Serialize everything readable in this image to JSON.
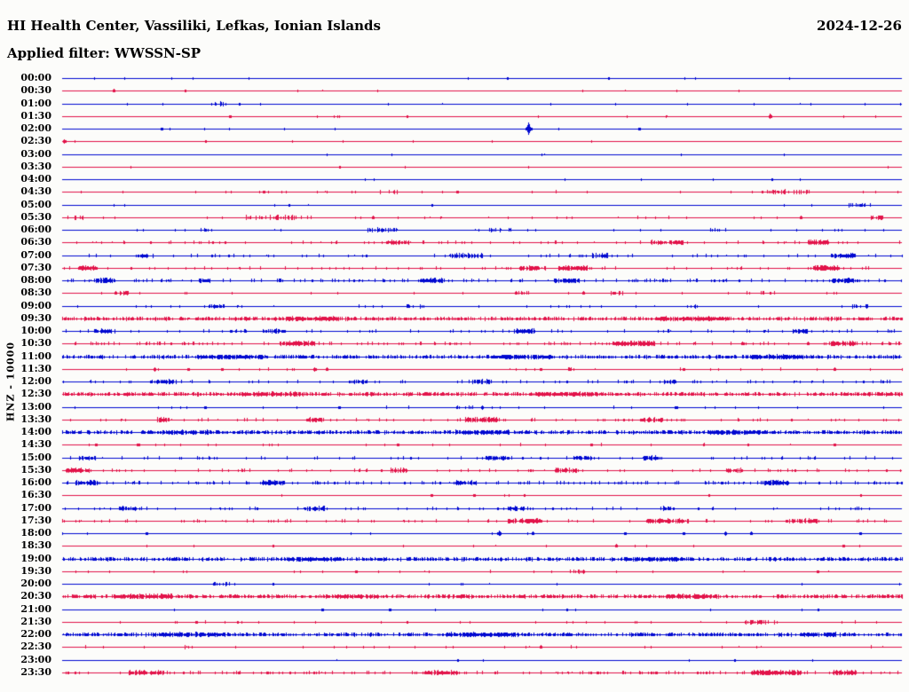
{
  "header": {
    "title": "HI Health Center, Vassiliki, Lefkas, Ionian Islands",
    "date": "2024-12-26",
    "filter_label": "Applied filter: WWSSN-SP"
  },
  "colors": {
    "trace_blue": "#0008d0",
    "trace_red": "#e21349",
    "text": "#000000",
    "background": "#fcfcfa"
  },
  "chart_data": {
    "type": "line",
    "subtype": "helicorder-seismogram",
    "title": "HI Health Center, Vassiliki, Lefkas, Ionian Islands",
    "date": "2024-12-26",
    "filter": "WWSSN-SP",
    "channel_label": "HNZ - 10000",
    "station": "HI",
    "channel": "HNZ",
    "gain": "10000",
    "grid": "off",
    "legend": "none",
    "x_axis": {
      "start": "00:00",
      "end": "24:00",
      "minutes_per_row": 30
    },
    "row_color_rule": "hour rows blue, half-hour rows red, alternating",
    "activity_levels": "l: 0=quiet 1=light 2=moderate 3=noisy 4=dense; b: bursts [x-fraction,width-px,strength]; e: event spikes [x-fraction,amplitude-px]",
    "rows": [
      {
        "t": "00:00",
        "c": "b",
        "l": 0,
        "b": [],
        "e": [
          [
            0.53,
            1.2
          ],
          [
            0.65,
            1.3
          ]
        ]
      },
      {
        "t": "00:30",
        "c": "r",
        "l": 0,
        "b": [],
        "e": [
          [
            0.061,
            1.8
          ],
          [
            0.146,
            1.3
          ]
        ]
      },
      {
        "t": "01:00",
        "c": "b",
        "l": 0,
        "b": [
          [
            0.183,
            16,
            2.5
          ]
        ],
        "e": [
          [
            0.21,
            1.3
          ]
        ]
      },
      {
        "t": "01:30",
        "c": "r",
        "l": 0,
        "b": [
          [
            0.327,
            10,
            1.8
          ]
        ],
        "e": [
          [
            0.2,
            1.4
          ],
          [
            0.41,
            1.3
          ],
          [
            0.843,
            2.6
          ]
        ]
      },
      {
        "t": "02:00",
        "c": "b",
        "l": 0,
        "b": [],
        "e": [
          [
            0.118,
            1.4
          ],
          [
            0.555,
            7
          ],
          [
            0.687,
            1.4
          ]
        ]
      },
      {
        "t": "02:30",
        "c": "r",
        "l": 0,
        "b": [],
        "e": [
          [
            0.002,
            2
          ],
          [
            0.17,
            1.3
          ]
        ]
      },
      {
        "t": "03:00",
        "c": "b",
        "l": 0,
        "b": [],
        "e": []
      },
      {
        "t": "03:30",
        "c": "r",
        "l": 0,
        "b": [],
        "e": [
          [
            0.33,
            1.2
          ]
        ]
      },
      {
        "t": "04:00",
        "c": "b",
        "l": 0,
        "b": [],
        "e": [
          [
            0.845,
            1.2
          ]
        ]
      },
      {
        "t": "04:30",
        "c": "r",
        "l": 1,
        "b": [
          [
            0.39,
            26,
            1.6
          ],
          [
            0.86,
            55,
            1.8
          ]
        ],
        "e": [
          [
            0.24,
            1.4
          ],
          [
            0.47,
            1.4
          ]
        ]
      },
      {
        "t": "05:00",
        "c": "b",
        "l": 0,
        "b": [
          [
            0.95,
            26,
            2
          ]
        ],
        "e": [
          [
            0.27,
            1.3
          ],
          [
            0.44,
            1.3
          ]
        ]
      },
      {
        "t": "05:30",
        "c": "r",
        "l": 1,
        "b": [
          [
            0.02,
            10,
            1.8
          ],
          [
            0.25,
            60,
            2.2
          ],
          [
            0.97,
            14,
            1.8
          ]
        ],
        "e": [
          [
            0.37,
            1.5
          ],
          [
            0.88,
            1.5
          ]
        ]
      },
      {
        "t": "06:00",
        "c": "b",
        "l": 1,
        "b": [
          [
            0.17,
            12,
            1.5
          ],
          [
            0.38,
            40,
            1.8
          ],
          [
            0.52,
            28,
            1.5
          ],
          [
            0.78,
            20,
            1.5
          ]
        ],
        "e": []
      },
      {
        "t": "06:30",
        "c": "r",
        "l": 2,
        "b": [
          [
            0.4,
            28,
            1.5
          ],
          [
            0.72,
            36,
            1.5
          ],
          [
            0.9,
            24,
            1.8
          ]
        ],
        "e": []
      },
      {
        "t": "07:00",
        "c": "b",
        "l": 2,
        "b": [
          [
            0.1,
            20,
            1.5
          ],
          [
            0.48,
            38,
            1.5
          ],
          [
            0.64,
            20,
            1.5
          ],
          [
            0.93,
            28,
            1.5
          ]
        ],
        "e": []
      },
      {
        "t": "07:30",
        "c": "r",
        "l": 2,
        "b": [
          [
            0.03,
            22,
            1.8
          ],
          [
            0.56,
            30,
            1.5
          ],
          [
            0.61,
            38,
            1.8
          ],
          [
            0.91,
            30,
            1.8
          ]
        ],
        "e": []
      },
      {
        "t": "08:00",
        "c": "b",
        "l": 3,
        "b": [
          [
            0.05,
            24,
            1.6
          ],
          [
            0.17,
            14,
            1.5
          ],
          [
            0.44,
            28,
            1.5
          ],
          [
            0.6,
            30,
            1.5
          ],
          [
            0.93,
            24,
            1.5
          ]
        ],
        "e": []
      },
      {
        "t": "08:30",
        "c": "r",
        "l": 1,
        "b": [
          [
            0.07,
            16,
            1.5
          ],
          [
            0.55,
            20,
            1.5
          ],
          [
            0.66,
            14,
            1.5
          ],
          [
            0.84,
            16,
            1.5
          ]
        ],
        "e": [
          [
            0.54,
            1.7
          ],
          [
            0.62,
            1.7
          ]
        ]
      },
      {
        "t": "09:00",
        "c": "b",
        "l": 1,
        "b": [
          [
            0.18,
            24,
            1.5
          ],
          [
            0.42,
            20,
            1.8
          ],
          [
            0.75,
            16,
            1.5
          ],
          [
            0.95,
            20,
            1.5
          ]
        ],
        "e": []
      },
      {
        "t": "09:30",
        "c": "r",
        "l": 4,
        "b": [
          [
            0.3,
            60,
            1.2
          ],
          [
            0.75,
            80,
            1.2
          ]
        ],
        "e": []
      },
      {
        "t": "10:00",
        "c": "b",
        "l": 2,
        "b": [
          [
            0.05,
            24,
            1.5
          ],
          [
            0.25,
            30,
            1.5
          ],
          [
            0.55,
            24,
            1.5
          ],
          [
            0.88,
            20,
            1.5
          ]
        ],
        "e": []
      },
      {
        "t": "10:30",
        "c": "r",
        "l": 3,
        "b": [
          [
            0.28,
            40,
            1.5
          ],
          [
            0.68,
            48,
            1.5
          ],
          [
            0.93,
            28,
            1.5
          ]
        ],
        "e": []
      },
      {
        "t": "11:00",
        "c": "b",
        "l": 4,
        "b": [
          [
            0.2,
            80,
            1.2
          ],
          [
            0.55,
            60,
            1.2
          ],
          [
            0.85,
            60,
            1.2
          ]
        ],
        "e": []
      },
      {
        "t": "11:30",
        "c": "r",
        "l": 1,
        "b": [
          [
            0.6,
            14,
            1.5
          ]
        ],
        "e": [
          [
            0.11,
            1.9
          ],
          [
            0.15,
            1.4
          ],
          [
            0.19,
            1.4
          ],
          [
            0.3,
            2.1
          ],
          [
            0.315,
            1.6
          ],
          [
            0.57,
            1.4
          ],
          [
            0.74,
            1.4
          ],
          [
            0.92,
            1.8
          ]
        ]
      },
      {
        "t": "12:00",
        "c": "b",
        "l": 2,
        "b": [
          [
            0.12,
            30,
            1.5
          ],
          [
            0.35,
            24,
            1.5
          ],
          [
            0.5,
            24,
            1.5
          ],
          [
            0.72,
            20,
            1.5
          ]
        ],
        "e": []
      },
      {
        "t": "12:30",
        "c": "r",
        "l": 4,
        "b": [
          [
            0.25,
            70,
            1.2
          ],
          [
            0.6,
            70,
            1.2
          ]
        ],
        "e": []
      },
      {
        "t": "13:00",
        "c": "b",
        "l": 1,
        "b": [
          [
            0.48,
            20,
            1.5
          ]
        ],
        "e": [
          [
            0.17,
            1.4
          ],
          [
            0.33,
            1.4
          ],
          [
            0.5,
            1.9
          ],
          [
            0.73,
            1.4
          ]
        ]
      },
      {
        "t": "13:30",
        "c": "r",
        "l": 2,
        "b": [
          [
            0.12,
            14,
            1.8
          ],
          [
            0.3,
            20,
            1.5
          ],
          [
            0.5,
            38,
            1.8
          ],
          [
            0.7,
            28,
            1.5
          ]
        ],
        "e": []
      },
      {
        "t": "14:00",
        "c": "b",
        "l": 4,
        "b": [
          [
            0.15,
            70,
            1.2
          ],
          [
            0.5,
            60,
            1.2
          ],
          [
            0.8,
            60,
            1.2
          ]
        ],
        "e": []
      },
      {
        "t": "14:30",
        "c": "r",
        "l": 1,
        "b": [],
        "e": [
          [
            0.04,
            1.4
          ],
          [
            0.09,
            1.4
          ],
          [
            0.4,
            1.4
          ],
          [
            0.63,
            1.4
          ],
          [
            0.92,
            1.4
          ]
        ]
      },
      {
        "t": "15:00",
        "c": "b",
        "l": 2,
        "b": [
          [
            0.03,
            20,
            1.5
          ],
          [
            0.52,
            30,
            1.6
          ],
          [
            0.62,
            20,
            1.5
          ],
          [
            0.7,
            18,
            1.5
          ]
        ],
        "e": []
      },
      {
        "t": "15:30",
        "c": "r",
        "l": 2,
        "b": [
          [
            0.02,
            30,
            1.6
          ],
          [
            0.4,
            20,
            1.7
          ],
          [
            0.6,
            28,
            1.5
          ],
          [
            0.8,
            20,
            1.5
          ]
        ],
        "e": []
      },
      {
        "t": "16:00",
        "c": "b",
        "l": 3,
        "b": [
          [
            0.03,
            28,
            1.5
          ],
          [
            0.25,
            28,
            1.5
          ],
          [
            0.48,
            24,
            1.5
          ],
          [
            0.85,
            28,
            1.5
          ]
        ],
        "e": []
      },
      {
        "t": "16:30",
        "c": "r",
        "l": 0,
        "b": [],
        "e": [
          [
            0.44,
            1.4
          ],
          [
            0.49,
            1.4
          ],
          [
            0.55,
            1.3
          ],
          [
            0.77,
            1.3
          ],
          [
            0.95,
            1.2
          ]
        ]
      },
      {
        "t": "17:00",
        "c": "b",
        "l": 2,
        "b": [
          [
            0.08,
            28,
            1.5
          ],
          [
            0.3,
            24,
            1.5
          ],
          [
            0.54,
            20,
            1.5
          ],
          [
            0.72,
            16,
            1.5
          ]
        ],
        "e": []
      },
      {
        "t": "17:30",
        "c": "r",
        "l": 2,
        "b": [
          [
            0.55,
            40,
            1.6
          ],
          [
            0.72,
            48,
            1.6
          ],
          [
            0.88,
            36,
            1.5
          ]
        ],
        "e": []
      },
      {
        "t": "18:00",
        "c": "b",
        "l": 0,
        "b": [
          [
            0.51,
            8,
            1.8
          ]
        ],
        "e": [
          [
            0.1,
            1.4
          ],
          [
            0.52,
            2.8
          ],
          [
            0.56,
            1.8
          ],
          [
            0.67,
            1.4
          ],
          [
            0.74,
            1.4
          ],
          [
            0.79,
            1.9
          ],
          [
            0.82,
            1.7
          ],
          [
            0.95,
            1.4
          ]
        ]
      },
      {
        "t": "18:30",
        "c": "r",
        "l": 0,
        "b": [],
        "e": [
          [
            0.25,
            1.2
          ],
          [
            0.66,
            1.7
          ],
          [
            0.93,
            1.4
          ]
        ]
      },
      {
        "t": "19:00",
        "c": "b",
        "l": 4,
        "b": [
          [
            0.3,
            60,
            1.1
          ],
          [
            0.7,
            60,
            1.1
          ]
        ],
        "e": []
      },
      {
        "t": "19:30",
        "c": "r",
        "l": 1,
        "b": [
          [
            0.61,
            12,
            1.5
          ]
        ],
        "e": [
          [
            0.35,
            1.4
          ],
          [
            0.62,
            1.9
          ],
          [
            0.9,
            1.4
          ]
        ]
      },
      {
        "t": "20:00",
        "c": "b",
        "l": 0,
        "b": [
          [
            0.19,
            26,
            1.8
          ]
        ],
        "e": [
          [
            0.25,
            1.3
          ]
        ]
      },
      {
        "t": "20:30",
        "c": "r",
        "l": 4,
        "b": [
          [
            0.1,
            60,
            1.3
          ],
          [
            0.35,
            50,
            1.2
          ],
          [
            0.75,
            60,
            1.2
          ]
        ],
        "e": []
      },
      {
        "t": "21:00",
        "c": "b",
        "l": 0,
        "b": [],
        "e": [
          [
            0.31,
            1.4
          ],
          [
            0.39,
            1.4
          ],
          [
            0.6,
            1.3
          ],
          [
            0.9,
            1.3
          ]
        ]
      },
      {
        "t": "21:30",
        "c": "r",
        "l": 1,
        "b": [
          [
            0.83,
            40,
            1.7
          ]
        ],
        "e": [
          [
            0.16,
            1.4
          ],
          [
            0.41,
            1.3
          ]
        ]
      },
      {
        "t": "22:00",
        "c": "b",
        "l": 4,
        "b": [
          [
            0.15,
            80,
            1.2
          ],
          [
            0.5,
            80,
            1.2
          ],
          [
            0.9,
            40,
            1.2
          ]
        ],
        "e": []
      },
      {
        "t": "22:30",
        "c": "r",
        "l": 1,
        "b": [
          [
            0.15,
            10,
            1.6
          ]
        ],
        "e": [
          [
            0.57,
            1.6
          ]
        ]
      },
      {
        "t": "23:00",
        "c": "b",
        "l": 0,
        "b": [],
        "e": [
          [
            0.47,
            1.2
          ],
          [
            0.8,
            1.2
          ]
        ]
      },
      {
        "t": "23:30",
        "c": "r",
        "l": 3,
        "b": [
          [
            0.1,
            40,
            1.4
          ],
          [
            0.45,
            40,
            1.4
          ],
          [
            0.85,
            56,
            1.5
          ],
          [
            0.93,
            28,
            1.5
          ]
        ],
        "e": []
      }
    ]
  }
}
